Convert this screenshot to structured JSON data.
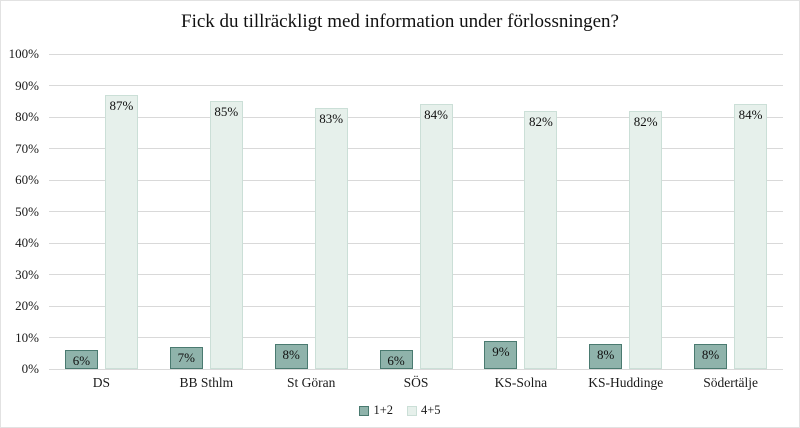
{
  "chart_data": {
    "type": "bar",
    "title": "Fick du tillräckligt med information under förlossningen?",
    "categories": [
      "DS",
      "BB Sthlm",
      "St Göran",
      "SÖS",
      "KS-Solna",
      "KS-Huddinge",
      "Södertälje"
    ],
    "series": [
      {
        "name": "1+2",
        "values": [
          6,
          7,
          8,
          6,
          9,
          8,
          8
        ],
        "fill": "#8FB3AB",
        "border": "#4A7A70"
      },
      {
        "name": "4+5",
        "values": [
          87,
          85,
          83,
          84,
          82,
          82,
          84
        ],
        "fill": "#E6F0EB",
        "border": "#CBDFD7"
      }
    ],
    "value_suffix": "%",
    "ylim": [
      0,
      100
    ],
    "y_ticks": [
      "0%",
      "10%",
      "20%",
      "30%",
      "40%",
      "50%",
      "60%",
      "70%",
      "80%",
      "90%",
      "100%"
    ],
    "grid": true,
    "legend_position": "bottom"
  },
  "colors": {
    "gridline": "#d9d9d9",
    "frame_border": "#e2e2e2",
    "text": "#1a1a1a",
    "background": "#ffffff"
  }
}
